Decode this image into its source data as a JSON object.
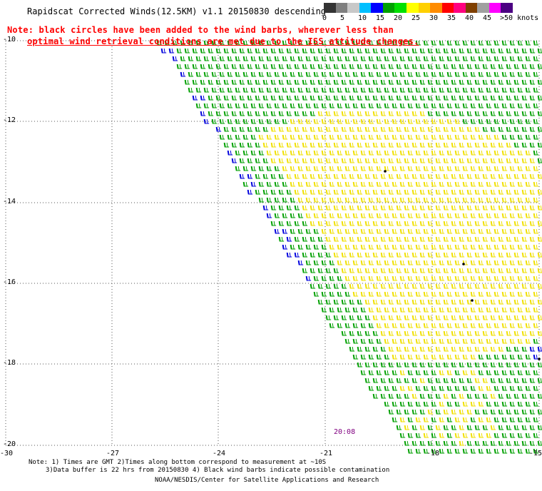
{
  "title": "Rapidscat Corrected Winds(12.5KM) v1.1 20150830 descending",
  "note_line1": "Note: black circles have been added to the wind barbs, wherever less than",
  "note_line2": "optimal wind retrieval conditions are met due to the ISS attitude changes.",
  "legend": {
    "labels": [
      "0",
      "5",
      "10",
      "15",
      "20",
      "25",
      "30",
      "35",
      "40",
      "45",
      ">50 knots"
    ],
    "colors": [
      "#333333",
      "#7f7f7f",
      "#c8c8c8",
      "#00bfff",
      "#0000ff",
      "#00a000",
      "#00e000",
      "#ffff00",
      "#ffd000",
      "#ff8c00",
      "#ff0000",
      "#ff0080",
      "#7f3f00",
      "#a0a0a0",
      "#ff00ff",
      "#4b0082"
    ]
  },
  "y_ticks": [
    "-10",
    "-12",
    "-14",
    "-16",
    "-18",
    "-20"
  ],
  "x_ticks": [
    "-30",
    "-27",
    "-24",
    "-21",
    "-18",
    "-15"
  ],
  "timestamp": "20:08",
  "footnote_line1": "Note: 1) Times are GMT 2)Times along bottom correspond to measurement at ~10S",
  "footnote_line2": "3)Data buffer is 22 hrs from 20150830 4) Black wind barbs indicate possible contamination",
  "credit": "NOAA/NESDIS/Center for Satellite Applications and Research",
  "barb_colors": {
    "green": "#00a000",
    "yellow": "#f0e000",
    "blue": "#0000dd",
    "black": "#000000"
  }
}
